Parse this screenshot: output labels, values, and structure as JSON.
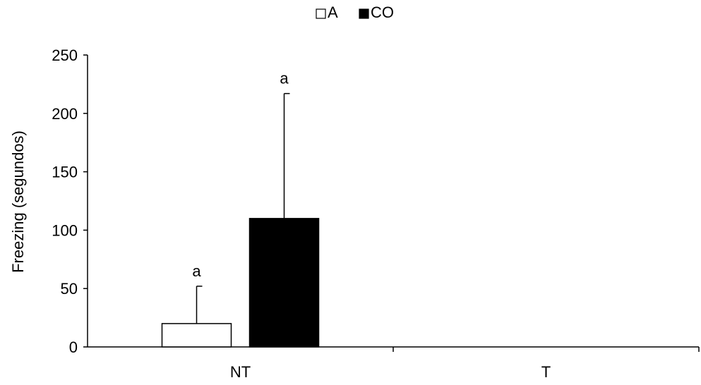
{
  "chart_data": {
    "type": "bar",
    "title": "",
    "xlabel": "",
    "ylabel": "Freezing (segundos)",
    "categories": [
      "NT",
      "T"
    ],
    "ylim": [
      0,
      250
    ],
    "yticks": [
      0,
      50,
      100,
      150,
      200,
      250
    ],
    "grid": false,
    "legend_position": "top-center",
    "series": [
      {
        "name": "A",
        "fill": "#ffffff",
        "stroke": "#000000",
        "values": [
          20,
          0
        ],
        "error_upper": [
          32,
          0
        ],
        "annotations": [
          "a",
          ""
        ]
      },
      {
        "name": "CO",
        "fill": "#000000",
        "stroke": "#000000",
        "values": [
          110,
          0
        ],
        "error_upper": [
          107,
          0
        ],
        "annotations": [
          "a",
          ""
        ]
      }
    ]
  }
}
